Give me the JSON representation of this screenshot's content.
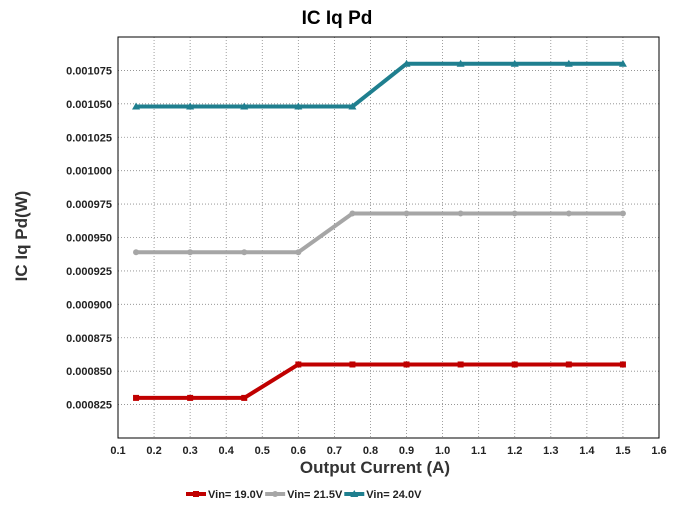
{
  "chart_data": {
    "type": "line",
    "title": "IC Iq Pd",
    "xlabel": "Output Current (A)",
    "ylabel": "IC Iq Pd(W)",
    "xlim": [
      0.1,
      1.6
    ],
    "ylim": [
      0.0008,
      0.0011
    ],
    "xticks": [
      "0.1",
      "0.2",
      "0.3",
      "0.4",
      "0.5",
      "0.6",
      "0.7",
      "0.8",
      "0.9",
      "1.0",
      "1.1",
      "1.2",
      "1.3",
      "1.4",
      "1.5",
      "1.6"
    ],
    "yticks": [
      "0.000825",
      "0.000850",
      "0.000875",
      "0.000900",
      "0.000925",
      "0.000950",
      "0.000975",
      "0.001000",
      "0.001025",
      "0.001050",
      "0.001075"
    ],
    "grid": true,
    "legend_position": "bottom",
    "x": [
      0.15,
      0.3,
      0.45,
      0.6,
      0.75,
      0.9,
      1.05,
      1.2,
      1.35,
      1.5
    ],
    "series": [
      {
        "name": "Vin= 19.0V",
        "color": "#c00000",
        "marker": "square",
        "values": [
          0.00083,
          0.00083,
          0.00083,
          0.000855,
          0.000855,
          0.000855,
          0.000855,
          0.000855,
          0.000855,
          0.000855
        ]
      },
      {
        "name": "Vin= 21.5V",
        "color": "#a6a6a6",
        "marker": "circle",
        "values": [
          0.000939,
          0.000939,
          0.000939,
          0.000939,
          0.000968,
          0.000968,
          0.000968,
          0.000968,
          0.000968,
          0.000968
        ]
      },
      {
        "name": "Vin= 24.0V",
        "color": "#1f7f8f",
        "marker": "triangle",
        "values": [
          0.001048,
          0.001048,
          0.001048,
          0.001048,
          0.001048,
          0.00108,
          0.00108,
          0.00108,
          0.00108,
          0.00108
        ]
      }
    ]
  }
}
